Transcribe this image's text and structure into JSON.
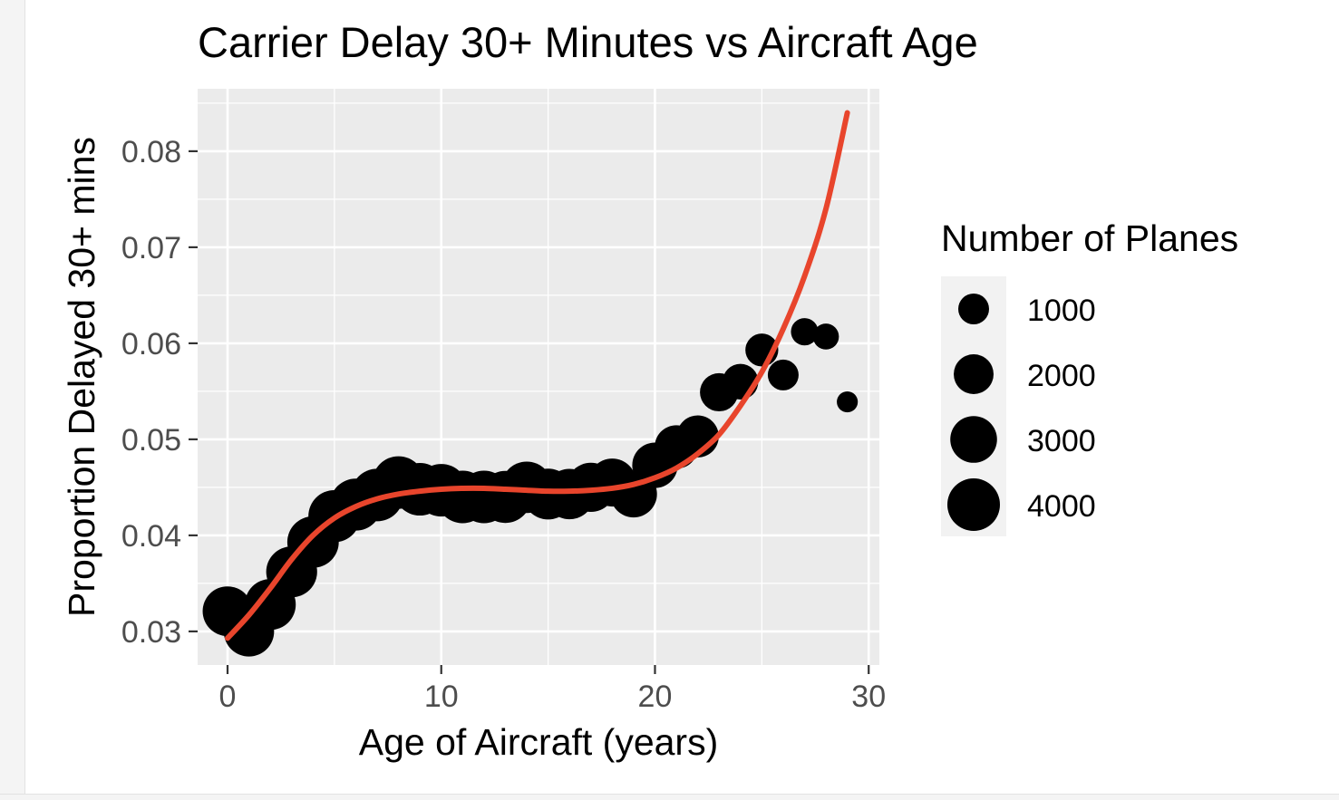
{
  "chart_data": {
    "type": "scatter",
    "title": "Carrier Delay 30+ Minutes vs Aircraft Age",
    "xlabel": "Age of Aircraft (years)",
    "ylabel": "Proportion Delayed 30+ mins",
    "xlim": [
      -1.4,
      30.5
    ],
    "ylim": [
      0.0265,
      0.0865
    ],
    "x_ticks": [
      0,
      10,
      20,
      30
    ],
    "y_ticks": [
      0.03,
      0.04,
      0.05,
      0.06,
      0.07,
      0.08
    ],
    "y_tick_labels": [
      "0.03",
      "0.04",
      "0.05",
      "0.06",
      "0.07",
      "0.08"
    ],
    "grid": true,
    "points": [
      {
        "x": 0,
        "y": 0.0321,
        "n": 3500
      },
      {
        "x": 1,
        "y": 0.03,
        "n": 3600
      },
      {
        "x": 2,
        "y": 0.0328,
        "n": 3700
      },
      {
        "x": 3,
        "y": 0.0362,
        "n": 3700
      },
      {
        "x": 4,
        "y": 0.0393,
        "n": 3800
      },
      {
        "x": 5,
        "y": 0.042,
        "n": 3900
      },
      {
        "x": 6,
        "y": 0.0432,
        "n": 3900
      },
      {
        "x": 7,
        "y": 0.0442,
        "n": 4000
      },
      {
        "x": 8,
        "y": 0.0455,
        "n": 4000
      },
      {
        "x": 9,
        "y": 0.0448,
        "n": 4000
      },
      {
        "x": 10,
        "y": 0.0447,
        "n": 4000
      },
      {
        "x": 11,
        "y": 0.044,
        "n": 4000
      },
      {
        "x": 12,
        "y": 0.044,
        "n": 4000
      },
      {
        "x": 13,
        "y": 0.044,
        "n": 3900
      },
      {
        "x": 14,
        "y": 0.045,
        "n": 3800
      },
      {
        "x": 15,
        "y": 0.0443,
        "n": 3700
      },
      {
        "x": 16,
        "y": 0.0443,
        "n": 3600
      },
      {
        "x": 17,
        "y": 0.045,
        "n": 3400
      },
      {
        "x": 18,
        "y": 0.0455,
        "n": 3200
      },
      {
        "x": 19,
        "y": 0.0443,
        "n": 3000
      },
      {
        "x": 20,
        "y": 0.0473,
        "n": 2800
      },
      {
        "x": 21,
        "y": 0.0492,
        "n": 2500
      },
      {
        "x": 22,
        "y": 0.0503,
        "n": 2300
      },
      {
        "x": 23,
        "y": 0.0549,
        "n": 1800
      },
      {
        "x": 24,
        "y": 0.056,
        "n": 1500
      },
      {
        "x": 25,
        "y": 0.0593,
        "n": 1200
      },
      {
        "x": 26,
        "y": 0.0567,
        "n": 1000
      },
      {
        "x": 27,
        "y": 0.0612,
        "n": 700
      },
      {
        "x": 28,
        "y": 0.0607,
        "n": 600
      },
      {
        "x": 29,
        "y": 0.0539,
        "n": 300
      }
    ],
    "trend_line": {
      "color": "#E8452C",
      "x": [
        0,
        1,
        2,
        3,
        4,
        5,
        6,
        7,
        8,
        9,
        10,
        11,
        12,
        13,
        14,
        15,
        16,
        17,
        18,
        19,
        20,
        21,
        22,
        23,
        24,
        25,
        26,
        27,
        28,
        29
      ],
      "y": [
        0.0293,
        0.0317,
        0.0345,
        0.0375,
        0.04,
        0.0418,
        0.043,
        0.0438,
        0.0443,
        0.0446,
        0.0448,
        0.0449,
        0.0449,
        0.0448,
        0.0447,
        0.0446,
        0.0446,
        0.0447,
        0.0449,
        0.0453,
        0.046,
        0.047,
        0.0485,
        0.0505,
        0.0535,
        0.057,
        0.0615,
        0.067,
        0.074,
        0.084
      ]
    },
    "point_color": "#000000",
    "panel_color": "#EBEBEB",
    "legend": {
      "title": "Number of Planes",
      "placement": "right",
      "entries": [
        {
          "label": "1000",
          "n": 1000
        },
        {
          "label": "2000",
          "n": 2000
        },
        {
          "label": "3000",
          "n": 3000
        },
        {
          "label": "4000",
          "n": 4000
        }
      ]
    }
  }
}
